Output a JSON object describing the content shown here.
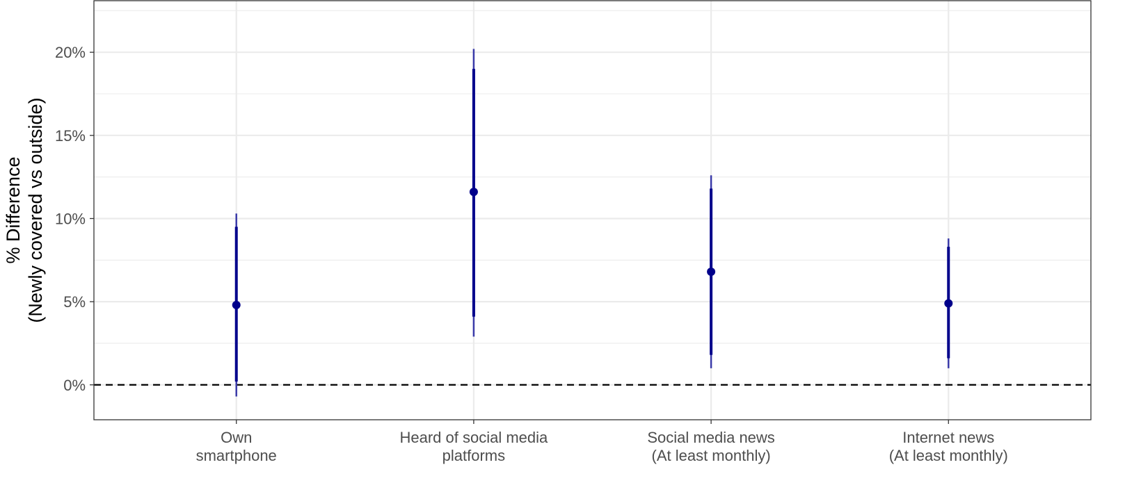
{
  "chart_data": {
    "type": "pointrange",
    "title": "",
    "xlabel": "",
    "ylabel_lines": [
      "% Difference",
      "(Newly covered vs outside)"
    ],
    "ylim": [
      -0.021,
      0.231
    ],
    "y_ticks": [
      0,
      0.05,
      0.1,
      0.15,
      0.2
    ],
    "y_tick_labels": [
      "0%",
      "5%",
      "10%",
      "15%",
      "20%"
    ],
    "reference_line": 0,
    "grid": true,
    "categories": [
      {
        "label_lines": [
          "Own",
          "smartphone"
        ],
        "estimate": 0.048,
        "ci90": [
          0.002,
          0.095
        ],
        "ci95": [
          -0.007,
          0.103
        ]
      },
      {
        "label_lines": [
          "Heard of social media",
          "platforms"
        ],
        "estimate": 0.116,
        "ci90": [
          0.041,
          0.19
        ],
        "ci95": [
          0.029,
          0.202
        ]
      },
      {
        "label_lines": [
          "Social media news",
          "(At least monthly)"
        ],
        "estimate": 0.068,
        "ci90": [
          0.018,
          0.118
        ],
        "ci95": [
          0.01,
          0.126
        ]
      },
      {
        "label_lines": [
          "Internet news",
          "(At least monthly)"
        ],
        "estimate": 0.049,
        "ci90": [
          0.016,
          0.083
        ],
        "ci95": [
          0.01,
          0.088
        ]
      }
    ],
    "colors": {
      "point": "#00008B",
      "inner_range": "#00008B",
      "outer_range": "#3A3AA8",
      "grid": "#EBEBEB",
      "reference_line": "#000000",
      "axis_text": "#4D4D4D",
      "axis_title": "#000000",
      "panel_border": "#333333"
    }
  }
}
